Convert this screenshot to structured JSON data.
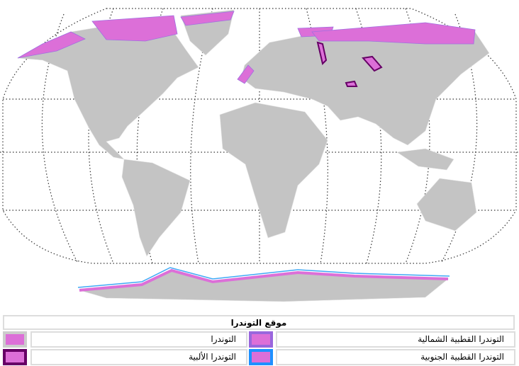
{
  "legend": {
    "title": "موقع التوندرا",
    "items": [
      {
        "label": "التوندرا",
        "border_color": "#cccccc"
      },
      {
        "label": "التوندرا القطبية الشمالية",
        "border_color": "#9966dd"
      },
      {
        "label": "التوندرا الألبية",
        "border_color": "#660066"
      },
      {
        "label": "التوندرا القطبية الجنوبية",
        "border_color": "#1e90ff"
      }
    ],
    "fill_color": "#dc6fd8"
  },
  "colors": {
    "land": "#c4c4c4",
    "tundra": "#dc6fd8",
    "alpine": "#660066",
    "antarctic_edge": "#3fa9f5"
  }
}
